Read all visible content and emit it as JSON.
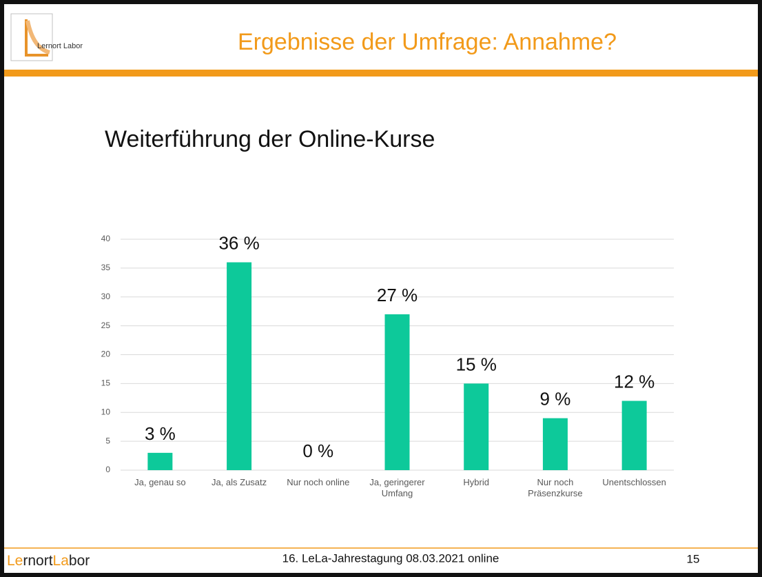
{
  "header": {
    "logo": "Lernort Labor",
    "title": "Ergebnisse der Umfrage: Annahme?"
  },
  "chart_data": {
    "type": "bar",
    "title": "Weiterführung der Online-Kurse",
    "categories": [
      "Ja, genau so",
      "Ja, als Zusatz",
      "Nur noch online",
      "Ja, geringerer Umfang",
      "Hybrid",
      "Nur noch Präsenzkurse",
      "Unentschlossen"
    ],
    "values": [
      3,
      36,
      0,
      27,
      15,
      9,
      12
    ],
    "value_labels": [
      "3 %",
      "36 %",
      "0 %",
      "27 %",
      "15 %",
      "9 %",
      "12 %"
    ],
    "color": "#0dc99a",
    "ylim": [
      0,
      40
    ],
    "yticks": [
      0,
      5,
      10,
      15,
      20,
      25,
      30,
      35,
      40
    ],
    "grid": true
  },
  "footer": {
    "logo_parts": [
      "Le",
      "rnort",
      "La",
      "bor"
    ],
    "text": "16. LeLa-Jahrestagung 08.03.2021 online",
    "page": "15"
  }
}
